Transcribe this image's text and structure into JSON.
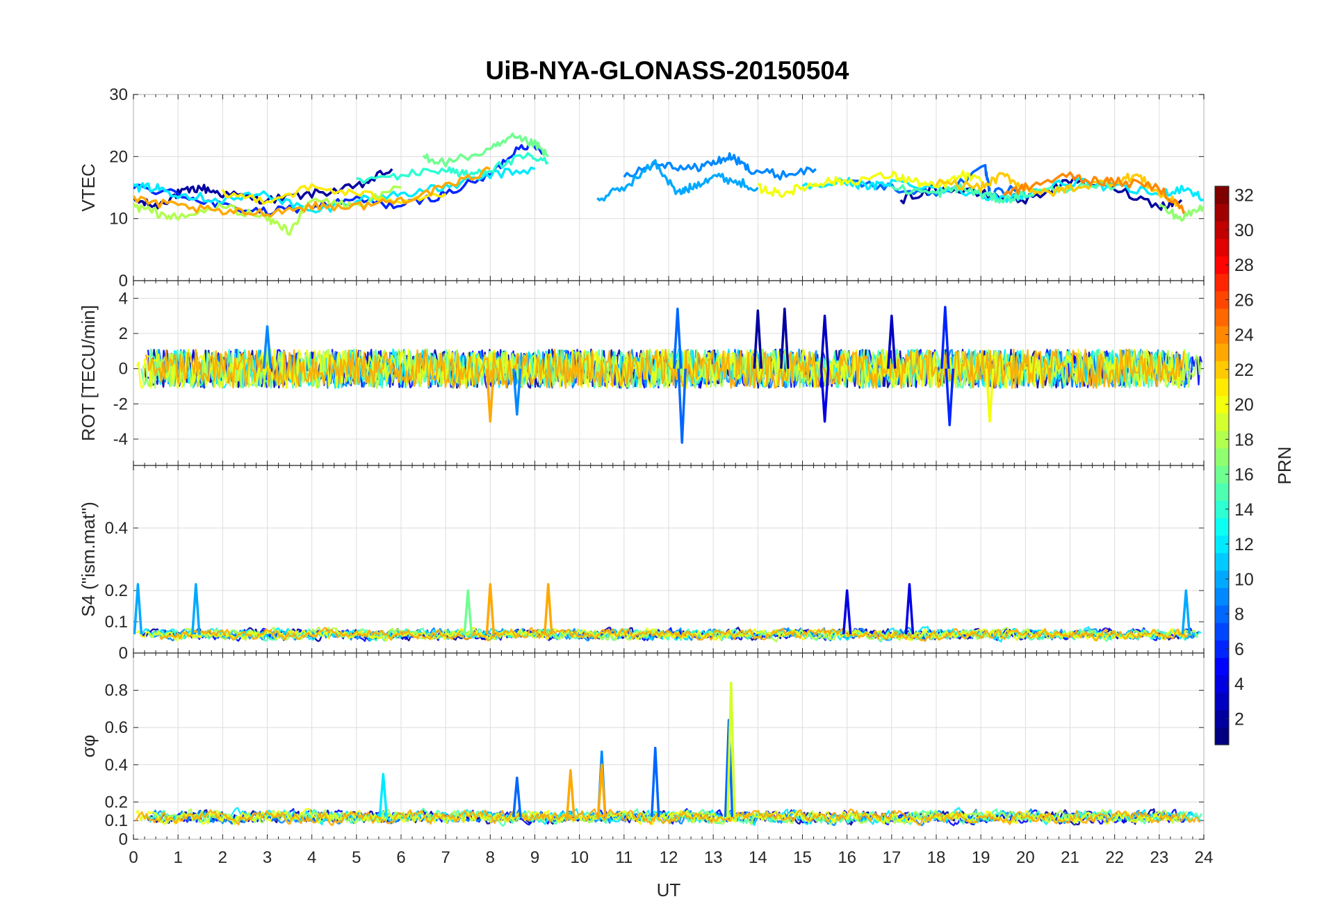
{
  "chart_data": {
    "type": "line",
    "title": "UiB-NYA-GLONASS-20150504",
    "xlabel": "UT",
    "xlim": [
      0,
      24
    ],
    "x_ticks": [
      "0",
      "1",
      "2",
      "3",
      "4",
      "5",
      "6",
      "7",
      "8",
      "9",
      "10",
      "11",
      "12",
      "13",
      "14",
      "15",
      "16",
      "17",
      "18",
      "19",
      "20",
      "21",
      "22",
      "23",
      "24"
    ],
    "grid": true,
    "panels": [
      {
        "id": "vtec",
        "ylabel": "VTEC",
        "ylim": [
          0,
          30
        ],
        "y_ticks": [
          0,
          10,
          20,
          30
        ],
        "y_tick_labels": [
          "0",
          "10",
          "20",
          "30"
        ],
        "series_note": "Per-satellite VTEC traces, roughly 10-23 TECU",
        "series": [
          {
            "prn": 2,
            "x": [
              0.0,
              0.5,
              1.0,
              1.5,
              2.0,
              3.0,
              4.0,
              5.0,
              5.8
            ],
            "y": [
              13,
              12,
              14,
              15,
              14,
              13,
              14,
              15,
              18
            ]
          },
          {
            "prn": 6,
            "x": [
              0.0,
              1.0,
              2.0,
              3.0,
              4.0,
              5.0,
              6.0,
              7.0,
              8.0,
              8.7,
              9.2
            ],
            "y": [
              15,
              14,
              12,
              11,
              12,
              13,
              12,
              14,
              17,
              22,
              21
            ]
          },
          {
            "prn": 9,
            "x": [
              11.0,
              11.8,
              12.5,
              13.0,
              13.4,
              13.8,
              14.5,
              15.3
            ],
            "y": [
              17,
              19,
              18,
              19,
              20,
              18,
              17,
              18
            ]
          },
          {
            "prn": 10,
            "x": [
              10.4,
              11.0,
              11.7,
              12.2,
              12.5,
              13.0,
              13.5,
              14.0
            ],
            "y": [
              13,
              15,
              19,
              14,
              15,
              17,
              16,
              15
            ]
          },
          {
            "prn": 12,
            "x": [
              0.0,
              0.5,
              1.0,
              2.0,
              3.0,
              4.0,
              5.0,
              6.0,
              7.0,
              8.0,
              9.0
            ],
            "y": [
              15,
              15,
              14,
              13,
              14,
              11,
              13,
              14,
              15,
              17,
              18
            ]
          },
          {
            "prn": 14,
            "x": [
              5.0,
              6.0,
              7.0,
              7.5,
              8.0,
              8.8,
              9.3
            ],
            "y": [
              16,
              17,
              18,
              17,
              18,
              20,
              19
            ]
          },
          {
            "prn": 16,
            "x": [
              6.5,
              7.0,
              8.0,
              8.5,
              9.0,
              9.3
            ],
            "y": [
              20,
              19,
              21,
              23,
              22,
              20
            ]
          },
          {
            "prn": 18,
            "x": [
              0.0,
              0.5,
              1.0,
              2.0,
              3.0,
              3.5,
              4.0,
              5.0,
              6.0
            ],
            "y": [
              12,
              11,
              10,
              12,
              10,
              8,
              13,
              12,
              15
            ]
          },
          {
            "prn": 21,
            "x": [
              2.0,
              3.0,
              4.0,
              5.0,
              6.0,
              7.0
            ],
            "y": [
              14,
              13,
              15,
              14,
              13,
              14
            ]
          },
          {
            "prn": 23,
            "x": [
              0.0,
              1.0,
              2.0,
              3.0,
              4.0,
              5.0,
              6.0,
              7.0,
              8.0
            ],
            "y": [
              13,
              12,
              11,
              11,
              12,
              12,
              13,
              15,
              18
            ]
          },
          {
            "prn": 2,
            "x": [
              17.2,
              18.0,
              19.0,
              20.0,
              21.0,
              22.0,
              23.0,
              23.5
            ],
            "y": [
              13,
              15,
              14,
              13,
              16,
              15,
              12,
              13
            ]
          },
          {
            "prn": 8,
            "x": [
              16.0,
              17.0,
              18.0,
              19.1,
              19.2,
              20.0
            ],
            "y": [
              16,
              15,
              14,
              18,
              14,
              15
            ]
          },
          {
            "prn": 12,
            "x": [
              15.0,
              16.0,
              16.5,
              17.0,
              18.0,
              19.0,
              19.5,
              20.0,
              21.0,
              22.0,
              23.0,
              23.6,
              24.0
            ],
            "y": [
              15,
              16,
              15,
              16,
              15,
              14,
              13,
              14,
              16,
              15,
              14,
              15,
              13
            ]
          },
          {
            "prn": 15,
            "x": [
              17.0,
              18.0,
              18.5,
              19.0,
              19.5,
              20.0,
              21.0,
              22.0
            ],
            "y": [
              15,
              14,
              15,
              14,
              13,
              14,
              15,
              15
            ]
          },
          {
            "prn": 20,
            "x": [
              14.0,
              14.5,
              15.0,
              15.5,
              16.0,
              17.0,
              17.5,
              18.0,
              18.6,
              19.0
            ],
            "y": [
              15,
              14,
              15,
              16,
              16,
              17,
              16,
              15,
              17,
              16
            ]
          },
          {
            "prn": 22,
            "x": [
              18.0,
              19.0,
              19.5,
              20.0,
              20.5,
              21.0,
              22.0,
              22.5,
              23.0,
              23.5
            ],
            "y": [
              16,
              15,
              17,
              15,
              14,
              15,
              16,
              17,
              14,
              12
            ]
          },
          {
            "prn": 24,
            "x": [
              19.5,
              20.0,
              21.0,
              21.5,
              22.0,
              23.0,
              23.6
            ],
            "y": [
              14,
              15,
              17,
              16,
              16,
              15,
              11
            ]
          },
          {
            "prn": 17,
            "x": [
              23.0,
              23.5,
              24.0
            ],
            "y": [
              12,
              10,
              12
            ]
          }
        ]
      },
      {
        "id": "rot",
        "ylabel": "ROT [TECU/min]",
        "ylim": [
          -5.5,
          5
        ],
        "y_ticks": [
          -4,
          -2,
          0,
          2,
          4
        ],
        "y_tick_labels": [
          "-4",
          "-2",
          "0",
          "2",
          "4"
        ],
        "series_note": "Rate of TEC fluctuating around 0 within about +/-1, spikes up to about 3.5 and down to about -4.2",
        "spikes": [
          {
            "prn": 9,
            "x": 3.0,
            "y": 2.4
          },
          {
            "prn": 23,
            "x": 8.0,
            "y": -3.0
          },
          {
            "prn": 9,
            "x": 8.6,
            "y": -2.6
          },
          {
            "prn": 8,
            "x": 12.2,
            "y": 3.4
          },
          {
            "prn": 8,
            "x": 12.3,
            "y": -4.2
          },
          {
            "prn": 2,
            "x": 14.0,
            "y": 3.3
          },
          {
            "prn": 2,
            "x": 14.6,
            "y": 3.4
          },
          {
            "prn": 3,
            "x": 15.5,
            "y": 3.0
          },
          {
            "prn": 4,
            "x": 15.5,
            "y": -3.0
          },
          {
            "prn": 3,
            "x": 17.0,
            "y": 3.0
          },
          {
            "prn": 6,
            "x": 18.2,
            "y": 3.5
          },
          {
            "prn": 6,
            "x": 18.3,
            "y": -3.2
          },
          {
            "prn": 20,
            "x": 19.2,
            "y": -3.0
          }
        ]
      },
      {
        "id": "s4",
        "ylabel": "S4 (\"ism.mat\")",
        "ylim": [
          0,
          0.6
        ],
        "y_ticks": [
          0,
          0.1,
          0.2,
          0.4
        ],
        "y_tick_labels": [
          "0",
          "0.1",
          "0.2",
          "0.4"
        ],
        "series_note": "Amplitude scintillation index, baseline about 0.05-0.1 with peaks to about 0.22",
        "spikes": [
          {
            "prn": 10,
            "x": 0.1,
            "y": 0.22
          },
          {
            "prn": 10,
            "x": 1.4,
            "y": 0.22
          },
          {
            "prn": 16,
            "x": 7.5,
            "y": 0.2
          },
          {
            "prn": 23,
            "x": 8.0,
            "y": 0.22
          },
          {
            "prn": 23,
            "x": 9.3,
            "y": 0.22
          },
          {
            "prn": 4,
            "x": 16.0,
            "y": 0.2
          },
          {
            "prn": 4,
            "x": 17.4,
            "y": 0.22
          },
          {
            "prn": 10,
            "x": 23.6,
            "y": 0.2
          }
        ]
      },
      {
        "id": "sigma_phi",
        "ylabel": "σφ",
        "ylim": [
          0,
          1
        ],
        "y_ticks": [
          0,
          0.1,
          0.2,
          0.4,
          0.6,
          0.8
        ],
        "y_tick_labels": [
          "0",
          "0.1",
          "0.2",
          "0.4",
          "0.6",
          "0.8"
        ],
        "series_note": "Phase scintillation index, baseline about 0.1-0.2 with peaks to about 0.84",
        "spikes": [
          {
            "prn": 12,
            "x": 5.6,
            "y": 0.35
          },
          {
            "prn": 8,
            "x": 8.6,
            "y": 0.33
          },
          {
            "prn": 23,
            "x": 9.8,
            "y": 0.37
          },
          {
            "prn": 9,
            "x": 10.5,
            "y": 0.47
          },
          {
            "prn": 23,
            "x": 10.5,
            "y": 0.4
          },
          {
            "prn": 8,
            "x": 11.7,
            "y": 0.49
          },
          {
            "prn": 8,
            "x": 13.35,
            "y": 0.64
          },
          {
            "prn": 19,
            "x": 13.4,
            "y": 0.84
          }
        ]
      }
    ],
    "colorbar": {
      "label": "PRN",
      "range": [
        1,
        32
      ],
      "ticks": [
        "2",
        "4",
        "6",
        "8",
        "10",
        "12",
        "14",
        "16",
        "18",
        "20",
        "22",
        "24",
        "26",
        "28",
        "30",
        "32"
      ],
      "colormap": "jet"
    }
  }
}
